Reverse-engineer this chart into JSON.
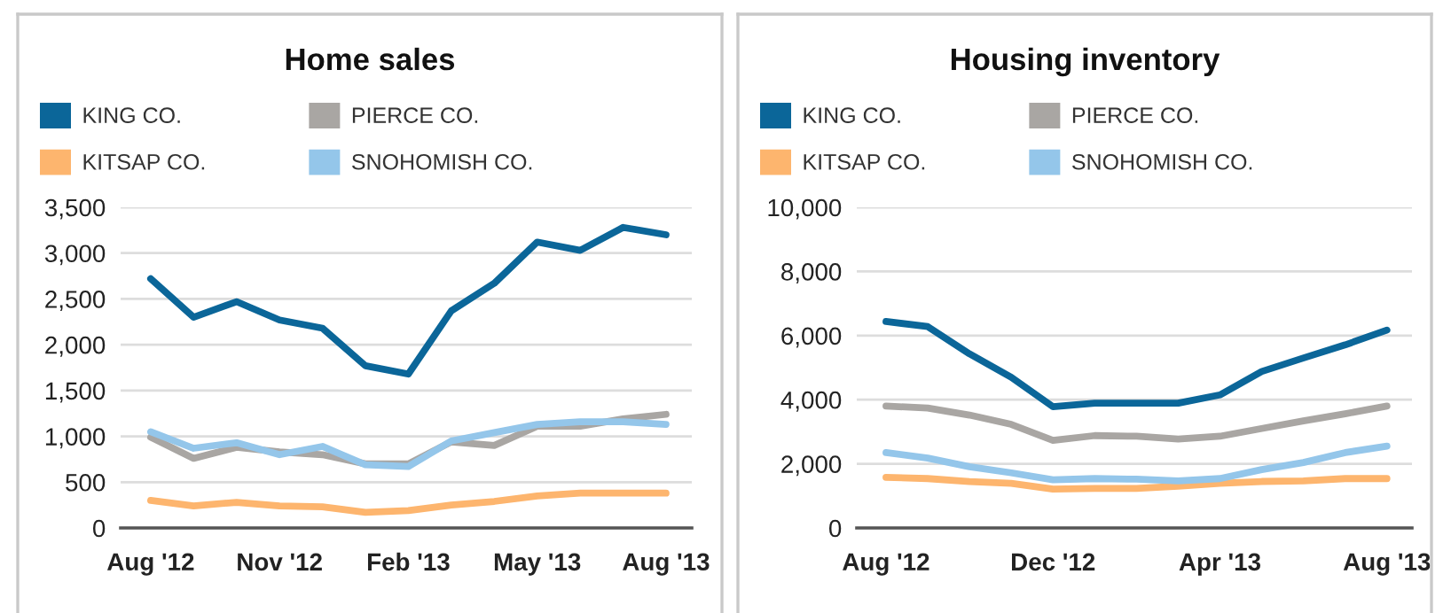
{
  "chart_data": [
    {
      "type": "line",
      "title": "Home sales",
      "legend": "top",
      "grid": "y",
      "categories": [
        "Aug '12",
        null,
        null,
        "Nov '12",
        null,
        null,
        "Feb '13",
        null,
        null,
        "May '13",
        null,
        null,
        "Aug '13"
      ],
      "ylim": [
        0,
        3500
      ],
      "yticks": [
        0,
        500,
        {
          "value": 1000,
          "label": "1,000"
        },
        {
          "value": 1500,
          "label": "1,500"
        },
        {
          "value": 2000,
          "label": "2,000"
        },
        {
          "value": 2500,
          "label": "2,500"
        },
        {
          "value": 3000,
          "label": "3,000"
        },
        {
          "value": 3500,
          "label": "3,500"
        }
      ],
      "series": [
        {
          "name": "KING CO.",
          "color": "#0b6699",
          "values": [
            2720,
            2300,
            2470,
            2270,
            2180,
            1770,
            1680,
            2370,
            2670,
            3120,
            3030,
            3280,
            3200
          ]
        },
        {
          "name": "PIERCE CO.",
          "color": "#a9a6a3",
          "values": [
            990,
            760,
            880,
            830,
            800,
            700,
            700,
            940,
            900,
            1110,
            1110,
            1190,
            1240
          ]
        },
        {
          "name": "KITSAP CO.",
          "color": "#fdb56e",
          "values": [
            300,
            240,
            280,
            240,
            230,
            170,
            190,
            250,
            290,
            350,
            380,
            380,
            380
          ]
        },
        {
          "name": "SNOHOMISH CO.",
          "color": "#94c6ea",
          "values": [
            1050,
            870,
            930,
            800,
            890,
            690,
            670,
            950,
            1040,
            1130,
            1160,
            1160,
            1130
          ]
        }
      ]
    },
    {
      "type": "line",
      "title": "Housing inventory",
      "legend": "top",
      "grid": "y",
      "categories": [
        "Aug '12",
        null,
        null,
        null,
        "Dec '12",
        null,
        null,
        null,
        "Apr '13",
        null,
        null,
        null,
        "Aug '13"
      ],
      "ylim": [
        0,
        10000
      ],
      "yticks": [
        0,
        {
          "value": 2000,
          "label": "2,000"
        },
        {
          "value": 4000,
          "label": "4,000"
        },
        {
          "value": 6000,
          "label": "6,000"
        },
        {
          "value": 8000,
          "label": "8,000"
        },
        {
          "value": 10000,
          "label": "10,000"
        }
      ],
      "series": [
        {
          "name": "KING CO.",
          "color": "#0b6699",
          "values": [
            6440,
            6280,
            5430,
            4700,
            3780,
            3890,
            3890,
            3890,
            4150,
            4880,
            5300,
            5710,
            6170
          ]
        },
        {
          "name": "PIERCE CO.",
          "color": "#a9a6a3",
          "values": [
            3800,
            3740,
            3520,
            3230,
            2730,
            2880,
            2860,
            2770,
            2860,
            3100,
            3340,
            3560,
            3800
          ]
        },
        {
          "name": "KITSAP CO.",
          "color": "#fdb56e",
          "values": [
            1580,
            1540,
            1450,
            1390,
            1210,
            1230,
            1230,
            1300,
            1390,
            1450,
            1470,
            1540,
            1540
          ]
        },
        {
          "name": "SNOHOMISH CO.",
          "color": "#94c6ea",
          "values": [
            2350,
            2180,
            1910,
            1720,
            1500,
            1540,
            1520,
            1470,
            1540,
            1820,
            2040,
            2350,
            2550
          ]
        }
      ]
    }
  ]
}
